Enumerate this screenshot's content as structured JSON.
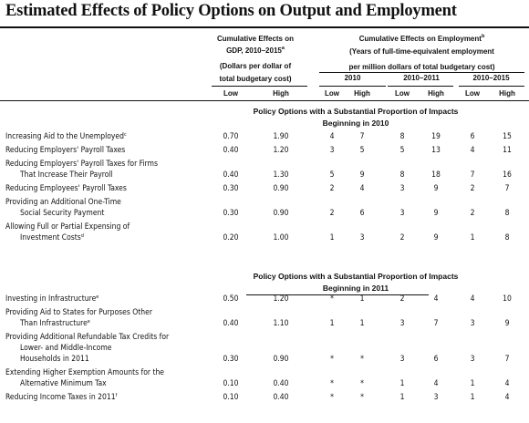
{
  "title": "Estimated Effects of Policy Options on Output and Employment",
  "header": {
    "gdp": {
      "line1": "Cumulative Effects on",
      "line2": "GDP, 2010–2015",
      "line2_sup": "a",
      "line3": "(Dollars per dollar of",
      "line4": "total budgetary cost)",
      "low": "Low",
      "high": "High"
    },
    "emp": {
      "line1": "Cumulative Effects on Employment",
      "line1_sup": "b",
      "line2": "(Years of full-time-equivalent employment",
      "line3": "per million dollars of total budgetary cost)",
      "periods": [
        "2010",
        "2010–2011",
        "2010–2015"
      ],
      "low": "Low",
      "high": "High"
    }
  },
  "groups": [
    {
      "heading1": "Policy Options with a Substantial Proportion of Impacts",
      "heading2": "Beginning in 2010",
      "rows": [
        {
          "label": [
            "Increasing Aid to the Unemployed"
          ],
          "sup": "c",
          "values": [
            "0.70",
            "1.90",
            "4",
            "7",
            "8",
            "19",
            "6",
            "15"
          ]
        },
        {
          "label": [
            "Reducing Employers' Payroll Taxes"
          ],
          "sup": "",
          "values": [
            "0.40",
            "1.20",
            "3",
            "5",
            "5",
            "13",
            "4",
            "11"
          ]
        },
        {
          "label": [
            "Reducing Employers' Payroll Taxes for Firms",
            "That Increase Their Payroll"
          ],
          "sup": "",
          "values": [
            "0.40",
            "1.30",
            "5",
            "9",
            "8",
            "18",
            "7",
            "16"
          ]
        },
        {
          "label": [
            "Reducing Employees' Payroll Taxes"
          ],
          "sup": "",
          "values": [
            "0.30",
            "0.90",
            "2",
            "4",
            "3",
            "9",
            "2",
            "7"
          ]
        },
        {
          "label": [
            "Providing an Additional One-Time",
            "Social Security Payment"
          ],
          "sup": "",
          "values": [
            "0.30",
            "0.90",
            "2",
            "6",
            "3",
            "9",
            "2",
            "8"
          ]
        },
        {
          "label": [
            "Allowing Full or Partial Expensing of",
            "Investment Costs"
          ],
          "sup": "d",
          "values": [
            "0.20",
            "1.00",
            "1",
            "3",
            "2",
            "9",
            "1",
            "8"
          ]
        }
      ]
    },
    {
      "heading1": "Policy Options with a Substantial Proportion of Impacts",
      "heading2": "Beginning in 2011",
      "rows": [
        {
          "label": [
            "Investing in Infrastructure"
          ],
          "sup": "e",
          "values": [
            "0.50",
            "1.20",
            "*",
            "1",
            "2",
            "4",
            "4",
            "10"
          ]
        },
        {
          "label": [
            "Providing Aid to States for Purposes Other",
            "Than Infrastructure"
          ],
          "sup": "e",
          "values": [
            "0.40",
            "1.10",
            "1",
            "1",
            "3",
            "7",
            "3",
            "9"
          ]
        },
        {
          "label": [
            "Providing Additional Refundable Tax Credits for",
            "Lower- and Middle-Income",
            "Households in 2011"
          ],
          "sup": "",
          "values": [
            "0.30",
            "0.90",
            "*",
            "*",
            "3",
            "6",
            "3",
            "7"
          ]
        },
        {
          "label": [
            "Extending Higher Exemption Amounts for the",
            "Alternative Minimum Tax"
          ],
          "sup": "",
          "values": [
            "0.10",
            "0.40",
            "*",
            "*",
            "1",
            "4",
            "1",
            "4"
          ]
        },
        {
          "label": [
            "Reducing Income Taxes in 2011"
          ],
          "sup": "f",
          "values": [
            "0.10",
            "0.40",
            "*",
            "*",
            "1",
            "3",
            "1",
            "4"
          ]
        }
      ]
    }
  ]
}
